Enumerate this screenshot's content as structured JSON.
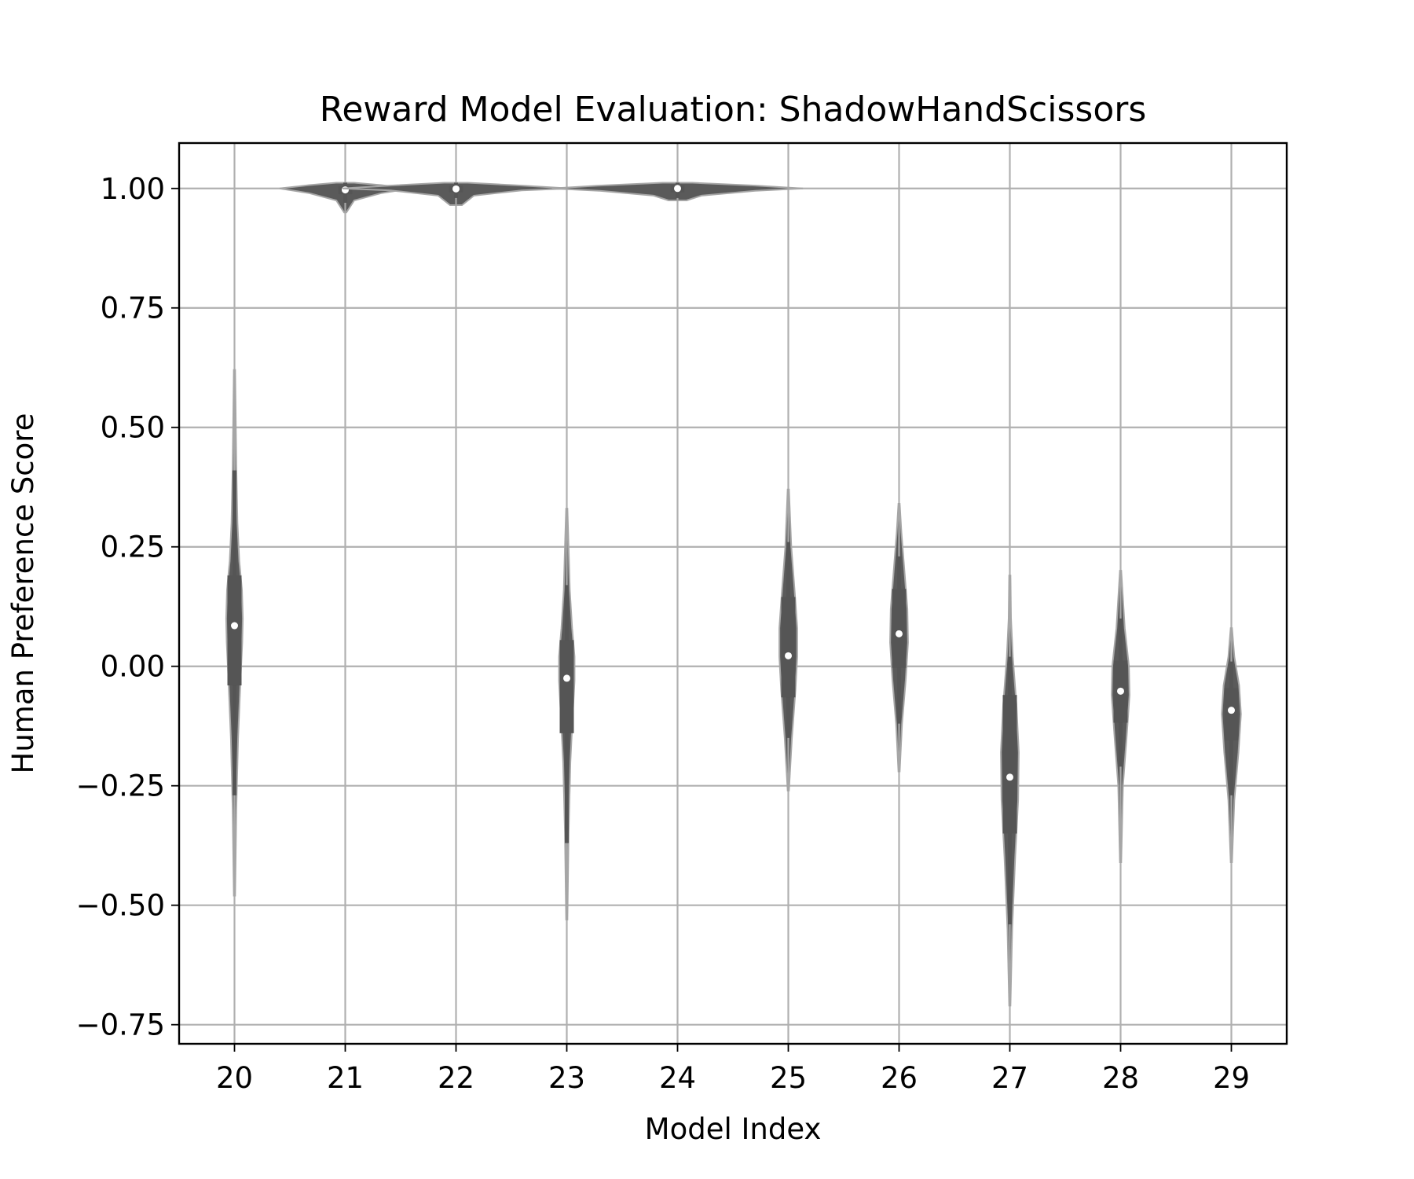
{
  "chart_data": {
    "type": "violin",
    "title": "Reward Model Evaluation: ShadowHandScissors",
    "xlabel": "Model Index",
    "ylabel": "Human Preference Score",
    "categories": [
      "20",
      "21",
      "22",
      "23",
      "24",
      "25",
      "26",
      "27",
      "28",
      "29"
    ],
    "ylim": [
      -0.79,
      1.095
    ],
    "yticks": [
      -0.75,
      -0.5,
      -0.25,
      0.0,
      0.25,
      0.5,
      0.75,
      1.0
    ],
    "ytick_labels": [
      "−0.75",
      "−0.50",
      "−0.25",
      "0.00",
      "0.25",
      "0.50",
      "0.75",
      "1.00"
    ],
    "grid": true,
    "colors": {
      "violin_fill": "#5a5a5a",
      "violin_edge": "#a6a6a6",
      "box": "#555555",
      "median": "#ffffff",
      "grid": "#b0b0b0"
    },
    "series": [
      {
        "category": "20",
        "min": -0.48,
        "max": 0.62,
        "q1": -0.04,
        "median": 0.085,
        "q3": 0.19,
        "whisker_low": -0.27,
        "whisker_high": 0.41,
        "profile": [
          [
            -0.48,
            0.002
          ],
          [
            -0.3,
            0.006
          ],
          [
            -0.15,
            0.012
          ],
          [
            -0.03,
            0.02
          ],
          [
            0.05,
            0.026
          ],
          [
            0.1,
            0.028
          ],
          [
            0.16,
            0.025
          ],
          [
            0.22,
            0.016
          ],
          [
            0.3,
            0.01
          ],
          [
            0.42,
            0.006
          ],
          [
            0.62,
            0.002
          ]
        ]
      },
      {
        "category": "21",
        "min": 0.95,
        "max": 1.012,
        "q1": 0.988,
        "median": 0.997,
        "q3": 1.005,
        "whisker_low": 0.97,
        "whisker_high": 1.012,
        "profile": [
          [
            0.95,
            0.004
          ],
          [
            0.975,
            0.03
          ],
          [
            0.99,
            0.12
          ],
          [
            1.0,
            0.22
          ],
          [
            1.007,
            0.12
          ],
          [
            1.012,
            0.03
          ]
        ]
      },
      {
        "category": "22",
        "min": 0.965,
        "max": 1.012,
        "q1": 0.992,
        "median": 0.999,
        "q3": 1.006,
        "whisker_low": 0.98,
        "whisker_high": 1.012,
        "profile": [
          [
            0.965,
            0.02
          ],
          [
            0.985,
            0.06
          ],
          [
            0.996,
            0.22
          ],
          [
            1.0,
            0.38
          ],
          [
            1.006,
            0.22
          ],
          [
            1.012,
            0.04
          ]
        ]
      },
      {
        "category": "23",
        "min": -0.53,
        "max": 0.33,
        "q1": -0.14,
        "median": -0.025,
        "q3": 0.055,
        "whisker_low": -0.37,
        "whisker_high": 0.17,
        "profile": [
          [
            -0.53,
            0.002
          ],
          [
            -0.35,
            0.006
          ],
          [
            -0.2,
            0.012
          ],
          [
            -0.1,
            0.02
          ],
          [
            -0.03,
            0.026
          ],
          [
            0.02,
            0.026
          ],
          [
            0.08,
            0.018
          ],
          [
            0.16,
            0.01
          ],
          [
            0.25,
            0.006
          ],
          [
            0.33,
            0.002
          ]
        ]
      },
      {
        "category": "24",
        "min": 0.975,
        "max": 1.012,
        "q1": 0.992,
        "median": 1.0,
        "q3": 1.007,
        "whisker_low": 0.98,
        "whisker_high": 1.012,
        "profile": [
          [
            0.975,
            0.03
          ],
          [
            0.985,
            0.08
          ],
          [
            0.995,
            0.26
          ],
          [
            1.0,
            0.42
          ],
          [
            1.006,
            0.26
          ],
          [
            1.012,
            0.05
          ]
        ]
      },
      {
        "category": "25",
        "min": -0.26,
        "max": 0.37,
        "q1": -0.065,
        "median": 0.022,
        "q3": 0.145,
        "whisker_low": -0.15,
        "whisker_high": 0.26,
        "profile": [
          [
            -0.26,
            0.002
          ],
          [
            -0.15,
            0.012
          ],
          [
            -0.05,
            0.024
          ],
          [
            0.02,
            0.03
          ],
          [
            0.08,
            0.03
          ],
          [
            0.15,
            0.022
          ],
          [
            0.25,
            0.01
          ],
          [
            0.37,
            0.002
          ]
        ]
      },
      {
        "category": "26",
        "min": -0.22,
        "max": 0.34,
        "q1": -0.003,
        "median": 0.068,
        "q3": 0.162,
        "whisker_low": -0.12,
        "whisker_high": 0.23,
        "profile": [
          [
            -0.22,
            0.002
          ],
          [
            -0.12,
            0.01
          ],
          [
            -0.03,
            0.022
          ],
          [
            0.05,
            0.03
          ],
          [
            0.12,
            0.028
          ],
          [
            0.2,
            0.018
          ],
          [
            0.28,
            0.008
          ],
          [
            0.34,
            0.002
          ]
        ]
      },
      {
        "category": "27",
        "min": -0.71,
        "max": 0.19,
        "q1": -0.35,
        "median": -0.232,
        "q3": -0.06,
        "whisker_low": -0.54,
        "whisker_high": 0.02,
        "profile": [
          [
            -0.71,
            0.002
          ],
          [
            -0.55,
            0.008
          ],
          [
            -0.4,
            0.018
          ],
          [
            -0.28,
            0.028
          ],
          [
            -0.18,
            0.03
          ],
          [
            -0.08,
            0.022
          ],
          [
            0.02,
            0.01
          ],
          [
            0.1,
            0.004
          ],
          [
            0.19,
            0.002
          ]
        ]
      },
      {
        "category": "28",
        "min": -0.41,
        "max": 0.2,
        "q1": -0.118,
        "median": -0.052,
        "q3": 0.012,
        "whisker_low": -0.21,
        "whisker_high": 0.1,
        "profile": [
          [
            -0.41,
            0.002
          ],
          [
            -0.25,
            0.008
          ],
          [
            -0.15,
            0.02
          ],
          [
            -0.06,
            0.03
          ],
          [
            0.0,
            0.028
          ],
          [
            0.08,
            0.014
          ],
          [
            0.2,
            0.002
          ]
        ]
      },
      {
        "category": "29",
        "min": -0.41,
        "max": 0.08,
        "q1": -0.155,
        "median": -0.092,
        "q3": -0.045,
        "whisker_low": -0.27,
        "whisker_high": 0.01,
        "profile": [
          [
            -0.41,
            0.002
          ],
          [
            -0.28,
            0.01
          ],
          [
            -0.18,
            0.024
          ],
          [
            -0.1,
            0.032
          ],
          [
            -0.04,
            0.026
          ],
          [
            0.02,
            0.01
          ],
          [
            0.08,
            0.002
          ]
        ]
      }
    ]
  }
}
